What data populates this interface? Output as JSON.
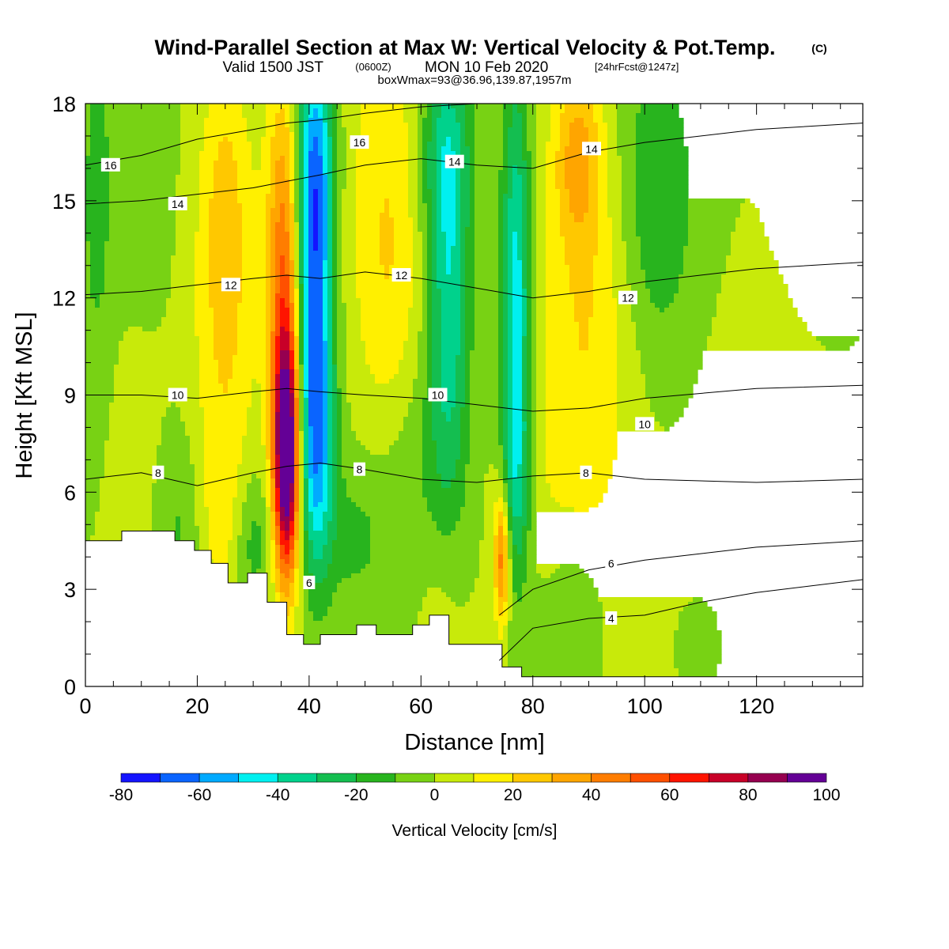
{
  "title": {
    "main": "Wind-Parallel Section at Max W: Vertical Velocity & Pot.Temp.",
    "copyright": "(C)",
    "valid_prefix": "Valid 1500 JST",
    "valid_utc": "(0600Z)",
    "valid_date": "MON 10 Feb 2020",
    "forecast": "[24hrFcst@1247z]",
    "box": "boxWmax=93@36.96,139.87,1957m"
  },
  "chart_data": {
    "type": "heatmap",
    "xlabel": "Distance [nm]",
    "ylabel": "Height [Kft MSL]",
    "xlim": [
      0,
      139
    ],
    "ylim": [
      0,
      18
    ],
    "x_ticks": [
      0,
      20,
      40,
      60,
      80,
      100,
      120
    ],
    "y_ticks": [
      0,
      3,
      6,
      9,
      12,
      15,
      18
    ],
    "field": "Vertical Velocity [cm/s]",
    "colorbar": {
      "title": "Vertical Velocity [cm/s]",
      "levels": [
        -80,
        -70,
        -60,
        -50,
        -40,
        -30,
        -20,
        -10,
        0,
        10,
        20,
        30,
        40,
        50,
        60,
        70,
        80,
        90,
        100
      ],
      "labels": [
        "-80",
        "-60",
        "-40",
        "-20",
        "0",
        "20",
        "40",
        "60",
        "80",
        "100"
      ],
      "colors": [
        "#1414ff",
        "#0a64ff",
        "#00aaff",
        "#00f0f0",
        "#00d28c",
        "#14be50",
        "#28b41e",
        "#78d214",
        "#c8ea0a",
        "#fff000",
        "#ffc800",
        "#ffa500",
        "#ff7d00",
        "#ff5000",
        "#ff1400",
        "#c80028",
        "#960050",
        "#640096"
      ],
      "background_bin_index": 7
    },
    "field_features": [
      {
        "x": 36,
        "y": 7,
        "value": 100,
        "sx": 1.6,
        "sy": 2.6
      },
      {
        "x": 35.5,
        "y": 11,
        "value": 40,
        "sx": 2.0,
        "sy": 4.0
      },
      {
        "x": 35.5,
        "y": 15.5,
        "value": 18,
        "sx": 2.4,
        "sy": 3.0
      },
      {
        "x": 41,
        "y": 12,
        "value": -60,
        "sx": 2.2,
        "sy": 4.5
      },
      {
        "x": 41.5,
        "y": 7,
        "value": -32,
        "sx": 2.2,
        "sy": 2.5
      },
      {
        "x": 41,
        "y": 16.5,
        "value": -30,
        "sx": 2.5,
        "sy": 2.5
      },
      {
        "x": 48,
        "y": 4.5,
        "value": -12,
        "sx": 4.0,
        "sy": 1.5
      },
      {
        "x": 25,
        "y": 11.5,
        "value": 22,
        "sx": 4.0,
        "sy": 4.0
      },
      {
        "x": 25,
        "y": 16,
        "value": 12,
        "sx": 3.0,
        "sy": 2.5
      },
      {
        "x": 54,
        "y": 15.5,
        "value": 18,
        "sx": 5.0,
        "sy": 4.0
      },
      {
        "x": 54,
        "y": 10,
        "value": 10,
        "sx": 4.0,
        "sy": 3.0
      },
      {
        "x": 65,
        "y": 12,
        "value": -38,
        "sx": 2.6,
        "sy": 4.5
      },
      {
        "x": 64,
        "y": 16.5,
        "value": -22,
        "sx": 3.5,
        "sy": 2.0
      },
      {
        "x": 77,
        "y": 11.5,
        "value": -48,
        "sx": 1.8,
        "sy": 5.0
      },
      {
        "x": 74.5,
        "y": 4.0,
        "value": 48,
        "sx": 1.0,
        "sy": 1.5
      },
      {
        "x": 77,
        "y": 6.5,
        "value": -18,
        "sx": 2.0,
        "sy": 2.0
      },
      {
        "x": 88,
        "y": 16.5,
        "value": 28,
        "sx": 3.0,
        "sy": 2.0
      },
      {
        "x": 90,
        "y": 12,
        "value": 18,
        "sx": 6.0,
        "sy": 4.0
      },
      {
        "x": 85,
        "y": 7,
        "value": 8,
        "sx": 8.0,
        "sy": 3.0
      },
      {
        "x": 102,
        "y": 15,
        "value": -20,
        "sx": 5.0,
        "sy": 3.5
      },
      {
        "x": 98,
        "y": 3,
        "value": 2,
        "sx": 8.0,
        "sy": 2.0
      },
      {
        "x": 122,
        "y": 5,
        "value": 8,
        "sx": 10.0,
        "sy": 4.0
      },
      {
        "x": 130,
        "y": 11,
        "value": -2,
        "sx": 6.0,
        "sy": 5.0
      },
      {
        "x": 2,
        "y": 15,
        "value": -14,
        "sx": 2.0,
        "sy": 4.0
      },
      {
        "x": 10,
        "y": 16,
        "value": -6,
        "sx": 4.0,
        "sy": 3.0
      },
      {
        "x": 9,
        "y": 7,
        "value": 4,
        "sx": 4.0,
        "sy": 3.0
      },
      {
        "x": 17,
        "y": 5,
        "value": -12,
        "sx": 3.0,
        "sy": 2.0
      },
      {
        "x": 24,
        "y": 5,
        "value": 12,
        "sx": 3.0,
        "sy": 2.0
      },
      {
        "x": 30,
        "y": 4.5,
        "value": -16,
        "sx": 2.5,
        "sy": 1.5
      },
      {
        "x": 58,
        "y": 7,
        "value": -10,
        "sx": 6.0,
        "sy": 2.5
      },
      {
        "x": 64,
        "y": 3,
        "value": 6,
        "sx": 3.0,
        "sy": 1.5
      },
      {
        "x": 87,
        "y": 2.5,
        "value": -10,
        "sx": 4.0,
        "sy": 1.5
      },
      {
        "x": 110,
        "y": 1.5,
        "value": -8,
        "sx": 3.0,
        "sy": 1.0
      }
    ],
    "terrain": {
      "description": "model terrain (masked region)",
      "x": [
        0,
        6.5,
        6.5,
        16,
        16,
        19.5,
        19.5,
        22.5,
        22.5,
        25.5,
        25.5,
        29,
        29,
        32.5,
        32.5,
        36,
        36,
        39,
        39,
        42,
        42,
        48.5,
        48.5,
        52,
        52,
        58.5,
        58.5,
        61.5,
        61.5,
        65,
        65,
        74.5,
        74.5,
        78,
        78,
        81,
        81,
        139
      ],
      "y": [
        4.5,
        4.5,
        4.8,
        4.8,
        4.5,
        4.5,
        4.2,
        4.2,
        3.8,
        3.8,
        3.2,
        3.2,
        3.5,
        3.5,
        2.6,
        2.6,
        1.6,
        1.6,
        1.3,
        1.3,
        1.6,
        1.6,
        1.9,
        1.9,
        1.6,
        1.6,
        1.9,
        1.9,
        2.2,
        2.2,
        1.3,
        1.3,
        0.6,
        0.6,
        0.3,
        0.3,
        0.3,
        0.3
      ]
    },
    "theta_contours": [
      {
        "level": 4,
        "x": [
          74,
          80,
          90,
          100,
          110,
          120,
          139
        ],
        "y": [
          0.8,
          1.8,
          2.1,
          2.2,
          2.6,
          2.9,
          3.3
        ]
      },
      {
        "level": 6,
        "x": [
          74,
          80,
          90,
          100,
          110,
          120,
          139
        ],
        "y": [
          2.2,
          3.0,
          3.6,
          3.9,
          4.1,
          4.3,
          4.5
        ]
      },
      {
        "level": 8,
        "x": [
          0,
          10,
          20,
          30,
          36,
          42,
          50,
          60,
          70,
          80,
          90,
          100,
          120,
          139
        ],
        "y": [
          6.4,
          6.6,
          6.2,
          6.6,
          6.8,
          6.9,
          6.7,
          6.4,
          6.3,
          6.5,
          6.6,
          6.4,
          6.3,
          6.4
        ]
      },
      {
        "level": 10,
        "x": [
          0,
          10,
          20,
          30,
          36,
          42,
          50,
          60,
          70,
          80,
          90,
          100,
          120,
          139
        ],
        "y": [
          9.0,
          9.0,
          8.9,
          9.1,
          9.2,
          9.1,
          9.0,
          8.9,
          8.7,
          8.5,
          8.6,
          8.9,
          9.2,
          9.3
        ]
      },
      {
        "level": 12,
        "x": [
          0,
          10,
          20,
          30,
          36,
          42,
          50,
          60,
          70,
          80,
          90,
          100,
          120,
          139
        ],
        "y": [
          12.1,
          12.2,
          12.4,
          12.6,
          12.7,
          12.6,
          12.8,
          12.6,
          12.3,
          12.0,
          12.2,
          12.5,
          12.9,
          13.1
        ]
      },
      {
        "level": 14,
        "x": [
          0,
          10,
          20,
          30,
          36,
          42,
          50,
          60,
          70,
          80,
          90,
          100,
          120,
          139
        ],
        "y": [
          14.9,
          15.0,
          15.2,
          15.4,
          15.6,
          15.8,
          16.1,
          16.3,
          16.1,
          16.0,
          16.5,
          16.8,
          17.2,
          17.4
        ]
      },
      {
        "level": 16,
        "x": [
          0,
          10,
          20,
          30,
          36,
          42,
          50,
          60,
          70,
          80,
          90,
          100,
          120,
          139
        ],
        "y": [
          16.1,
          16.4,
          16.9,
          17.2,
          17.4,
          17.5,
          17.7,
          17.9,
          18.0,
          18.0,
          18.0,
          18.0,
          18.0,
          18.0
        ]
      }
    ],
    "contour_labels": [
      {
        "text": "16",
        "x": 4.5,
        "y": 16.1
      },
      {
        "text": "14",
        "x": 16.5,
        "y": 14.9
      },
      {
        "text": "12",
        "x": 26.0,
        "y": 12.4
      },
      {
        "text": "10",
        "x": 16.5,
        "y": 9.0
      },
      {
        "text": "8",
        "x": 13.0,
        "y": 6.6
      },
      {
        "text": "16",
        "x": 49.0,
        "y": 16.8
      },
      {
        "text": "14",
        "x": 66.0,
        "y": 16.2
      },
      {
        "text": "12",
        "x": 56.5,
        "y": 12.7
      },
      {
        "text": "10",
        "x": 63.0,
        "y": 9.0
      },
      {
        "text": "8",
        "x": 49.0,
        "y": 6.7
      },
      {
        "text": "6",
        "x": 40.0,
        "y": 3.2
      },
      {
        "text": "14",
        "x": 90.5,
        "y": 16.6
      },
      {
        "text": "12",
        "x": 97.0,
        "y": 12.0
      },
      {
        "text": "10",
        "x": 100.0,
        "y": 8.1
      },
      {
        "text": "8",
        "x": 89.5,
        "y": 6.6
      },
      {
        "text": "6",
        "x": 94.0,
        "y": 3.8
      },
      {
        "text": "4",
        "x": 94.0,
        "y": 2.1
      }
    ]
  }
}
